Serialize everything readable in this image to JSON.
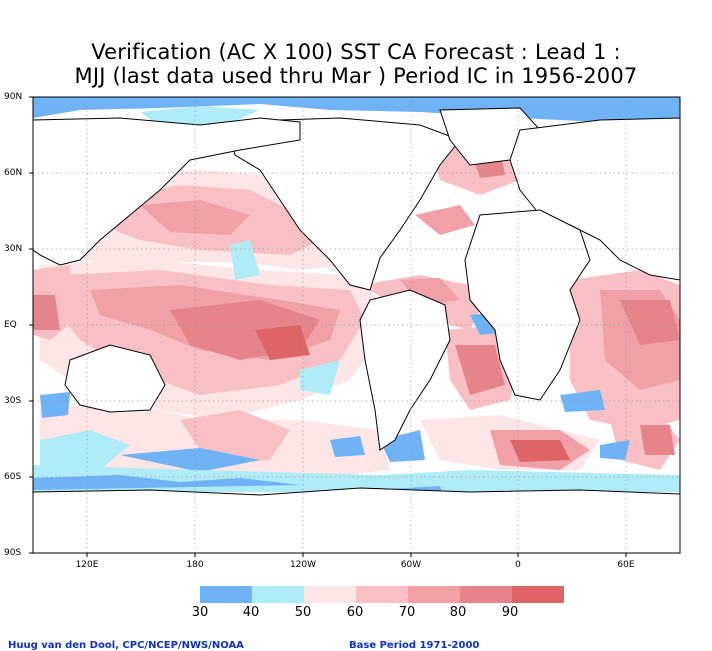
{
  "title_line1": "Verification (AC X 100) SST CA Forecast : Lead 1 :",
  "title_line2": "MJJ (last data used thru Mar ) Period IC in 1956-2007",
  "lat_labels": [
    "90N",
    "60N",
    "30N",
    "EQ",
    "30S",
    "60S",
    "90S"
  ],
  "lon_labels": [
    "120E",
    "180",
    "120W",
    "60W",
    "0",
    "60E"
  ],
  "colorbar": {
    "labels": [
      "30",
      "40",
      "50",
      "60",
      "70",
      "80",
      "90"
    ],
    "colors": [
      "#6fb2f5",
      "#b0ecf7",
      "#ffe6e6",
      "#f8c0c4",
      "#f0a0a6",
      "#e5848b",
      "#de6468"
    ]
  },
  "footer_left": "Huug van den Dool, CPC/NCEP/NWS/NOAA",
  "footer_right": "Base Period 1971-2000"
}
